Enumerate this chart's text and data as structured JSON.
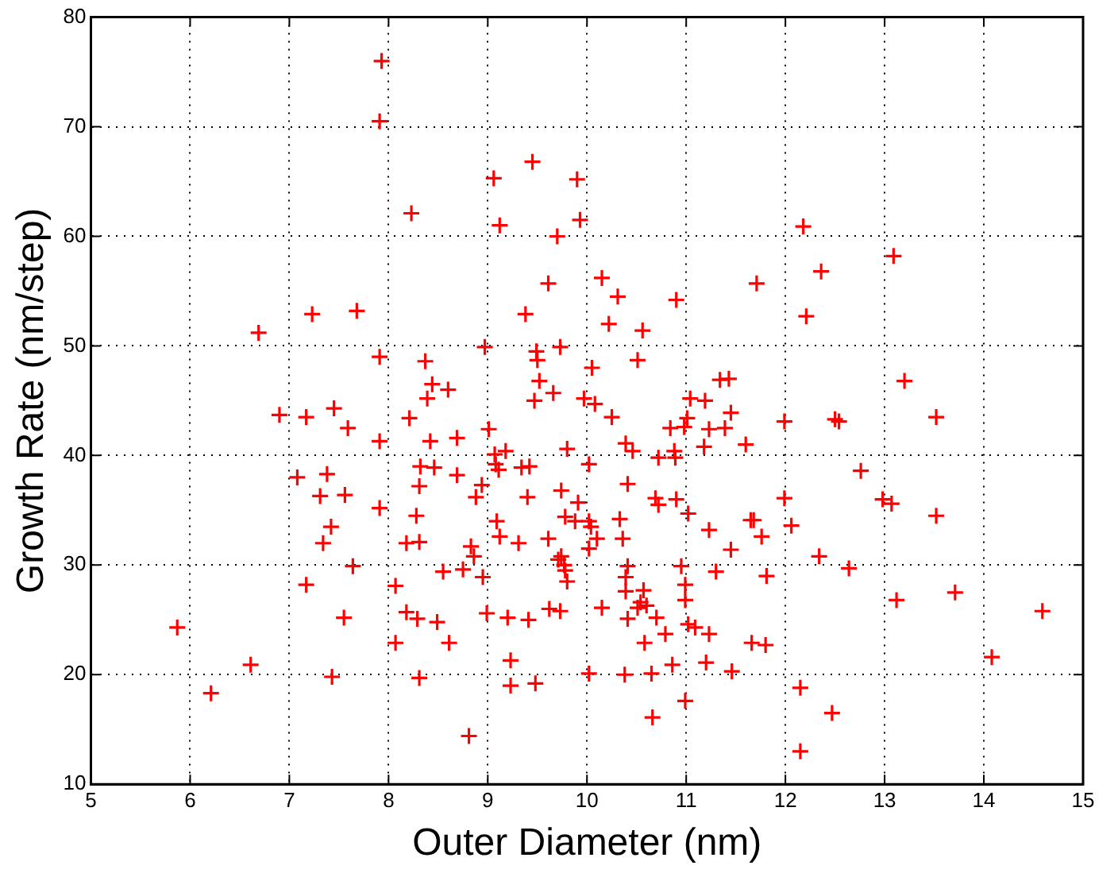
{
  "chart_data": {
    "type": "scatter",
    "xlabel": "Outer Diameter (nm)",
    "ylabel": "Growth Rate (nm/step)",
    "xlim": [
      5,
      15
    ],
    "ylim": [
      10,
      80
    ],
    "xticks": [
      5,
      6,
      7,
      8,
      9,
      10,
      11,
      12,
      13,
      14,
      15
    ],
    "yticks": [
      10,
      20,
      30,
      40,
      50,
      60,
      70,
      80
    ],
    "grid": true,
    "marker": "cross",
    "legend": false,
    "series": [
      {
        "color": "#ff0000",
        "x": [
          7.93,
          7.91,
          8.23,
          9.06,
          9.45,
          9.9,
          9.12,
          9.93,
          9.7,
          10.15,
          9.61,
          9.38,
          7.68,
          7.23,
          6.69,
          7.91,
          8.97,
          9.49,
          9.5,
          9.73,
          10.05,
          8.37,
          8.44,
          8.6,
          8.39,
          9.52,
          9.66,
          9.47,
          9.97,
          10.08,
          6.9,
          7.17,
          7.45,
          12.18,
          13.09,
          12.36,
          11.71,
          12.21,
          10.31,
          10.9,
          10.22,
          10.56,
          10.51,
          13.2,
          11.34,
          11.43,
          11.04,
          11.19,
          10.25,
          10.84,
          10.98,
          11.01,
          11.45,
          11.23,
          11.39,
          11.18,
          11.6,
          10.39,
          10.46,
          10.72,
          10.88,
          10.89,
          10.02,
          11.99,
          12.5,
          12.54,
          13.52,
          12.76,
          12.98,
          13.07,
          13.52,
          11.99,
          12.06,
          12.34,
          12.64,
          13.12,
          13.71,
          14.59,
          14.08,
          12.15,
          12.47,
          12.15,
          10.41,
          10.69,
          10.72,
          10.9,
          11.02,
          11.23,
          11.45,
          11.65,
          11.68,
          11.76,
          11.81,
          11.3,
          10.33,
          10.36,
          10.02,
          10.1,
          10.02,
          10.41,
          10.39,
          10.39,
          10.57,
          10.54,
          10.6,
          10.51,
          10.7,
          10.79,
          10.41,
          10.58,
          10.95,
          10.99,
          10.99,
          11.02,
          11.09,
          11.23,
          11.66,
          11.8,
          11.2,
          10.86,
          11.46,
          10.38,
          10.65,
          10.02,
          10.99,
          10.66,
          10.15,
          7.59,
          7.91,
          8.21,
          8.42,
          8.69,
          9.01,
          9.8,
          9.07,
          9.18,
          9.08,
          9.11,
          8.32,
          8.46,
          8.69,
          9.34,
          9.42,
          7.08,
          7.38,
          7.31,
          7.56,
          7.91,
          8.31,
          8.28,
          8.94,
          8.88,
          9.4,
          9.74,
          9.91,
          9.78,
          9.88,
          10.04,
          7.42,
          7.34,
          7.64,
          7.17,
          9.09,
          9.12,
          9.31,
          8.18,
          8.31,
          8.83,
          8.86,
          9.61,
          9.71,
          9.77,
          9.78,
          9.74,
          9.8,
          8.55,
          8.75,
          8.95,
          8.07,
          8.18,
          8.29,
          8.49,
          8.61,
          8.99,
          9.2,
          9.41,
          9.62,
          9.73,
          8.07,
          7.55,
          5.87,
          6.61,
          6.21,
          7.43,
          8.31,
          9.23,
          9.23,
          9.48,
          8.81
        ],
        "values": [
          76,
          70.5,
          62.1,
          65.3,
          66.8,
          65.2,
          61,
          61.5,
          60,
          56.2,
          55.7,
          52.9,
          53.2,
          52.9,
          51.2,
          49,
          49.9,
          49.5,
          48.7,
          49.9,
          48,
          48.6,
          46.5,
          46,
          45.2,
          46.8,
          45.7,
          45,
          45.2,
          44.7,
          43.7,
          43.5,
          44.3,
          60.9,
          58.2,
          56.8,
          55.7,
          52.7,
          54.5,
          54.2,
          52,
          51.4,
          48.7,
          46.8,
          46.9,
          47,
          45.2,
          45,
          43.5,
          42.5,
          42.6,
          43.4,
          43.9,
          42.4,
          42.5,
          40.8,
          41,
          41.1,
          40.4,
          39.8,
          40.4,
          39.8,
          39.2,
          43.1,
          43.3,
          43.1,
          43.5,
          38.6,
          36,
          35.6,
          34.5,
          36.1,
          33.6,
          30.8,
          29.7,
          26.8,
          27.5,
          25.8,
          21.6,
          18.8,
          16.5,
          13,
          37.4,
          36.1,
          35.5,
          36,
          34.7,
          33.2,
          31.4,
          34.1,
          34.1,
          32.6,
          29,
          29.4,
          34.2,
          32.4,
          34,
          32.4,
          31.5,
          29.9,
          28.9,
          27.6,
          27.7,
          26.6,
          26.3,
          26.1,
          25.2,
          23.7,
          25.1,
          22.9,
          29.9,
          28.2,
          26.8,
          24.6,
          24.3,
          23.7,
          22.9,
          22.7,
          21.1,
          20.9,
          20.3,
          20,
          20.1,
          20.1,
          17.6,
          16.1,
          26.1,
          42.5,
          41.3,
          43.4,
          41.3,
          41.6,
          42.4,
          40.6,
          40.1,
          40.4,
          39.2,
          38.7,
          39,
          38.9,
          38.2,
          38.9,
          39,
          38,
          38.3,
          36.3,
          36.4,
          35.2,
          37.2,
          34.5,
          37.3,
          36.2,
          36.2,
          36.8,
          35.7,
          34.4,
          34,
          33.5,
          33.5,
          32,
          29.9,
          28.2,
          34,
          32.6,
          32,
          32,
          32.1,
          31.7,
          30.8,
          32.4,
          30.5,
          30,
          29.5,
          30.8,
          28.5,
          29.4,
          29.6,
          28.9,
          28.1,
          25.7,
          25.1,
          24.8,
          22.9,
          25.6,
          25.2,
          25,
          26,
          25.8,
          22.9,
          25.2,
          24.3,
          20.9,
          18.3,
          19.8,
          19.7,
          21.3,
          19,
          19.2,
          14.4
        ]
      }
    ]
  }
}
